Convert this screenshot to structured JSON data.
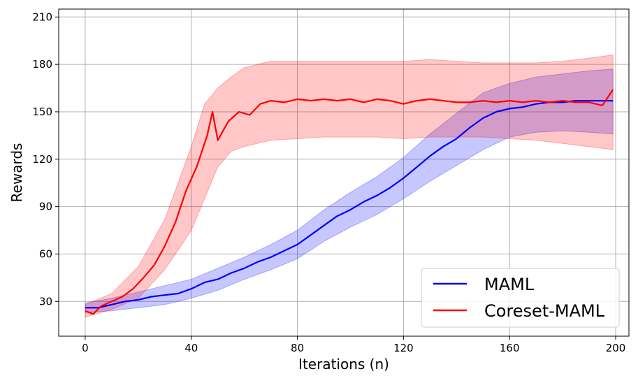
{
  "chart_data": {
    "type": "line",
    "xlabel": "Iterations (n)",
    "ylabel": "Rewards",
    "xlim": [
      -10,
      205
    ],
    "ylim": [
      8,
      215
    ],
    "xticks": [
      0,
      40,
      80,
      120,
      160,
      200
    ],
    "yticks": [
      30,
      60,
      90,
      120,
      150,
      180,
      210
    ],
    "grid": true,
    "legend_position": "lower-right",
    "series": [
      {
        "name": "MAML",
        "color": "#0000ff",
        "band_color": "#0000ff",
        "points": [
          [
            0,
            26
          ],
          [
            5,
            26
          ],
          [
            10,
            28
          ],
          [
            15,
            30
          ],
          [
            20,
            31
          ],
          [
            25,
            33
          ],
          [
            30,
            34
          ],
          [
            35,
            35
          ],
          [
            40,
            38
          ],
          [
            45,
            42
          ],
          [
            50,
            44
          ],
          [
            55,
            48
          ],
          [
            60,
            51
          ],
          [
            65,
            55
          ],
          [
            70,
            58
          ],
          [
            75,
            62
          ],
          [
            80,
            66
          ],
          [
            85,
            72
          ],
          [
            90,
            78
          ],
          [
            95,
            84
          ],
          [
            100,
            88
          ],
          [
            105,
            93
          ],
          [
            110,
            97
          ],
          [
            115,
            102
          ],
          [
            120,
            108
          ],
          [
            125,
            115
          ],
          [
            130,
            122
          ],
          [
            135,
            128
          ],
          [
            140,
            133
          ],
          [
            145,
            140
          ],
          [
            150,
            146
          ],
          [
            155,
            150
          ],
          [
            160,
            152
          ],
          [
            165,
            153
          ],
          [
            170,
            155
          ],
          [
            175,
            156
          ],
          [
            180,
            156
          ],
          [
            185,
            157
          ],
          [
            190,
            157
          ],
          [
            195,
            157
          ],
          [
            199,
            157
          ]
        ],
        "band": [
          [
            0,
            23,
            29
          ],
          [
            10,
            24,
            32
          ],
          [
            20,
            26,
            36
          ],
          [
            30,
            28,
            40
          ],
          [
            40,
            32,
            44
          ],
          [
            50,
            37,
            51
          ],
          [
            60,
            44,
            58
          ],
          [
            70,
            50,
            66
          ],
          [
            80,
            57,
            75
          ],
          [
            90,
            68,
            88
          ],
          [
            100,
            77,
            99
          ],
          [
            110,
            85,
            109
          ],
          [
            120,
            95,
            121
          ],
          [
            130,
            106,
            136
          ],
          [
            140,
            116,
            149
          ],
          [
            150,
            126,
            162
          ],
          [
            160,
            134,
            168
          ],
          [
            170,
            137,
            172
          ],
          [
            180,
            138,
            174
          ],
          [
            190,
            137,
            176
          ],
          [
            199,
            136,
            177
          ]
        ]
      },
      {
        "name": "Coreset-MAML",
        "color": "#ff0000",
        "band_color": "#ff0000",
        "points": [
          [
            0,
            24
          ],
          [
            3,
            22
          ],
          [
            6,
            27
          ],
          [
            10,
            30
          ],
          [
            14,
            33
          ],
          [
            18,
            38
          ],
          [
            22,
            45
          ],
          [
            26,
            53
          ],
          [
            30,
            65
          ],
          [
            34,
            80
          ],
          [
            38,
            100
          ],
          [
            42,
            115
          ],
          [
            46,
            135
          ],
          [
            48,
            150
          ],
          [
            50,
            132
          ],
          [
            54,
            144
          ],
          [
            58,
            150
          ],
          [
            62,
            148
          ],
          [
            66,
            155
          ],
          [
            70,
            157
          ],
          [
            75,
            156
          ],
          [
            80,
            158
          ],
          [
            85,
            157
          ],
          [
            90,
            158
          ],
          [
            95,
            157
          ],
          [
            100,
            158
          ],
          [
            105,
            156
          ],
          [
            110,
            158
          ],
          [
            115,
            157
          ],
          [
            120,
            155
          ],
          [
            125,
            157
          ],
          [
            130,
            158
          ],
          [
            135,
            157
          ],
          [
            140,
            156
          ],
          [
            145,
            156
          ],
          [
            150,
            157
          ],
          [
            155,
            156
          ],
          [
            160,
            157
          ],
          [
            165,
            156
          ],
          [
            170,
            157
          ],
          [
            175,
            156
          ],
          [
            180,
            157
          ],
          [
            185,
            156
          ],
          [
            190,
            156
          ],
          [
            195,
            154
          ],
          [
            199,
            164
          ]
        ],
        "band": [
          [
            0,
            20,
            28
          ],
          [
            10,
            25,
            35
          ],
          [
            20,
            32,
            52
          ],
          [
            30,
            50,
            82
          ],
          [
            40,
            75,
            128
          ],
          [
            45,
            95,
            155
          ],
          [
            50,
            115,
            165
          ],
          [
            55,
            125,
            172
          ],
          [
            60,
            128,
            178
          ],
          [
            70,
            132,
            182
          ],
          [
            80,
            133,
            182
          ],
          [
            90,
            134,
            182
          ],
          [
            100,
            134,
            182
          ],
          [
            110,
            134,
            182
          ],
          [
            120,
            133,
            182
          ],
          [
            130,
            134,
            183
          ],
          [
            140,
            134,
            182
          ],
          [
            150,
            134,
            181
          ],
          [
            160,
            133,
            181
          ],
          [
            170,
            132,
            181
          ],
          [
            180,
            130,
            182
          ],
          [
            190,
            128,
            184
          ],
          [
            199,
            126,
            186
          ]
        ]
      }
    ]
  }
}
